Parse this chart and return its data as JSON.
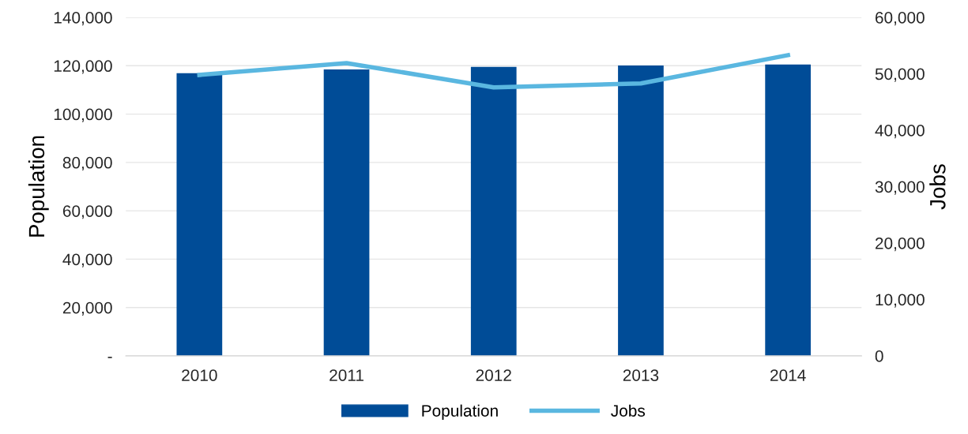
{
  "chart_data": {
    "type": "bar",
    "ylabel": "Population",
    "y2label": "Jobs",
    "categories": [
      "2010",
      "2011",
      "2012",
      "2013",
      "2014"
    ],
    "series": [
      {
        "name": "Population",
        "color": "#004c97",
        "values": [
          116900,
          118500,
          119500,
          120100,
          120500
        ]
      },
      {
        "name": "Jobs",
        "type": "line",
        "axis": "y2",
        "color": "#5ab7e0",
        "values": [
          49800,
          51900,
          47600,
          48300,
          53300
        ]
      }
    ],
    "ylim": [
      0,
      140000
    ],
    "yticks": [
      {
        "value": 0,
        "label": "-"
      },
      {
        "value": 20000,
        "label": "20,000"
      },
      {
        "value": 40000,
        "label": "40,000"
      },
      {
        "value": 60000,
        "label": "60,000"
      },
      {
        "value": 80000,
        "label": "80,000"
      },
      {
        "value": 100000,
        "label": "100,000"
      },
      {
        "value": 120000,
        "label": "120,000"
      },
      {
        "value": 140000,
        "label": "140,000"
      }
    ],
    "y2lim": [
      0,
      60000
    ],
    "y2ticks": [
      0,
      {
        "value": 10000,
        "label": "10,000"
      },
      {
        "value": 20000,
        "label": "20,000"
      },
      {
        "value": 30000,
        "label": "30,000"
      },
      {
        "value": 40000,
        "label": "40,000"
      },
      {
        "value": 50000,
        "label": "50,000"
      },
      {
        "value": 60000,
        "label": "60,000"
      }
    ],
    "grid": "y",
    "legend": "bottom",
    "marker": "none",
    "line_style": "solid"
  }
}
